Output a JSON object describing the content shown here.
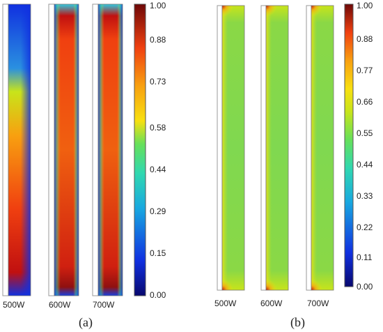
{
  "panel_a": {
    "label": "(a)",
    "columns": [
      "500W",
      "600W",
      "700W"
    ],
    "colorbar_ticks": [
      "1.00",
      "0.88",
      "0.73",
      "0.58",
      "0.44",
      "0.29",
      "0.15",
      "0.00"
    ]
  },
  "panel_b": {
    "label": "(b)",
    "columns": [
      "500W",
      "600W",
      "700W"
    ],
    "colorbar_ticks": [
      "1.00",
      "0.88",
      "0.77",
      "0.66",
      "0.55",
      "0.44",
      "0.33",
      "0.22",
      "0.11",
      "0.00"
    ]
  },
  "colormap": [
    "#08086e",
    "#1030e0",
    "#18a8e0",
    "#30d8b0",
    "#66e05a",
    "#c8e41a",
    "#f8e010",
    "#f8a010",
    "#f04010",
    "#c01010",
    "#6e0808"
  ]
}
